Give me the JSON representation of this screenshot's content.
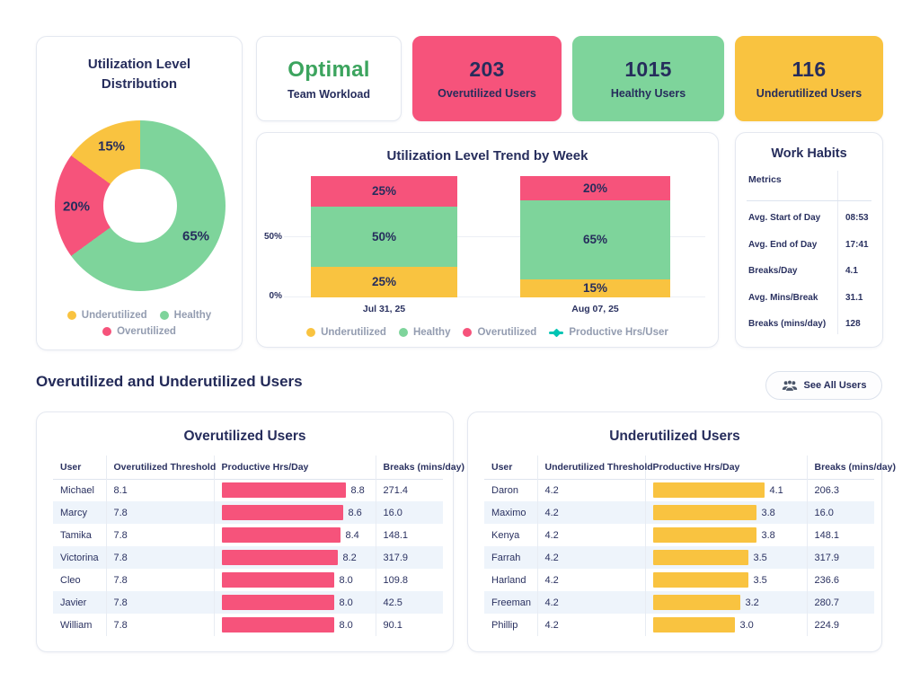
{
  "colors": {
    "pink": "#F6537B",
    "green": "#7ED49B",
    "yellow": "#F9C340",
    "teal": "#00C5B4",
    "navy": "#262D5C",
    "optimal_green": "#3CA45E"
  },
  "donut": {
    "title_line1": "Utilization Level",
    "title_line2": "Distribution",
    "chart_data": {
      "type": "pie",
      "slices": [
        {
          "label": "Healthy",
          "value": 65,
          "display": "65%",
          "color": "#7ED49B"
        },
        {
          "label": "Overutilized",
          "value": 20,
          "display": "20%",
          "color": "#F6537B"
        },
        {
          "label": "Underutilized",
          "value": 15,
          "display": "15%",
          "color": "#F9C340"
        }
      ]
    },
    "legend": [
      {
        "label": "Underutilized",
        "color": "#F9C340"
      },
      {
        "label": "Healthy",
        "color": "#7ED49B"
      },
      {
        "label": "Overutilized",
        "color": "#F6537B"
      }
    ]
  },
  "stat_cards": {
    "workload": {
      "value": "Optimal",
      "label": "Team Workload"
    },
    "overutilized": {
      "value": "203",
      "label": "Overutilized Users"
    },
    "healthy": {
      "value": "1015",
      "label": "Healthy Users"
    },
    "underutilized": {
      "value": "116",
      "label": "Underutilized Users"
    }
  },
  "trend": {
    "title": "Utilization Level Trend by Week",
    "y_ticks": [
      "50%",
      "0%"
    ],
    "chart_data": {
      "type": "bar",
      "stacked": true,
      "categories": [
        "Jul 31, 25",
        "Aug 07, 25"
      ],
      "series": [
        {
          "name": "Underutilized",
          "values": [
            25,
            15
          ]
        },
        {
          "name": "Healthy",
          "values": [
            50,
            65
          ]
        },
        {
          "name": "Overutilized",
          "values": [
            25,
            20
          ]
        }
      ],
      "ylim": [
        0,
        100
      ]
    },
    "weeks": [
      {
        "x_label": "Jul 31, 25",
        "values": {
          "overutilized": 25,
          "healthy": 50,
          "underutilized": 25
        },
        "display": {
          "overutilized": "25%",
          "healthy": "50%",
          "underutilized": "25%"
        }
      },
      {
        "x_label": "Aug 07, 25",
        "values": {
          "overutilized": 20,
          "healthy": 65,
          "underutilized": 15
        },
        "display": {
          "overutilized": "20%",
          "healthy": "65%",
          "underutilized": "15%"
        }
      }
    ],
    "legend": [
      {
        "label": "Underutilized",
        "color": "#F9C340",
        "marker": "dot"
      },
      {
        "label": "Healthy",
        "color": "#7ED49B",
        "marker": "dot"
      },
      {
        "label": "Overutilized",
        "color": "#F6537B",
        "marker": "dot"
      },
      {
        "label": "Productive Hrs/User",
        "color": "#00C5B4",
        "marker": "line-diamond"
      }
    ]
  },
  "work_habits": {
    "title": "Work Habits",
    "column_header": "Metrics",
    "rows": [
      {
        "label": "Avg. Start of Day",
        "value": "08:53"
      },
      {
        "label": "Avg. End of Day",
        "value": "17:41"
      },
      {
        "label": "Breaks/Day",
        "value": "4.1"
      },
      {
        "label": "Avg. Mins/Break",
        "value": "31.1"
      },
      {
        "label": "Breaks (mins/day)",
        "value": "128"
      }
    ]
  },
  "users_section": {
    "title": "Overutilized and Underutilized Users",
    "see_all_button": "See All Users"
  },
  "users_tables": {
    "overutilized": {
      "title": "Overutilized Users",
      "columns": [
        "User",
        "Overutilized Threshold",
        "Productive Hrs/Day",
        "Breaks (mins/day)"
      ],
      "bar_color": "#F6537B",
      "rows": [
        {
          "user": "Michael",
          "threshold": "8.1",
          "hours": 8.8,
          "hours_label": "8.8",
          "breaks": "271.4"
        },
        {
          "user": "Marcy",
          "threshold": "7.8",
          "hours": 8.6,
          "hours_label": "8.6",
          "breaks": "16.0"
        },
        {
          "user": "Tamika",
          "threshold": "7.8",
          "hours": 8.4,
          "hours_label": "8.4",
          "breaks": "148.1"
        },
        {
          "user": "Victorina",
          "threshold": "7.8",
          "hours": 8.2,
          "hours_label": "8.2",
          "breaks": "317.9"
        },
        {
          "user": "Cleo",
          "threshold": "7.8",
          "hours": 8.0,
          "hours_label": "8.0",
          "breaks": "109.8"
        },
        {
          "user": "Javier",
          "threshold": "7.8",
          "hours": 8.0,
          "hours_label": "8.0",
          "breaks": "42.5"
        },
        {
          "user": "William",
          "threshold": "7.8",
          "hours": 8.0,
          "hours_label": "8.0",
          "breaks": "90.1"
        }
      ]
    },
    "underutilized": {
      "title": "Underutilized Users",
      "columns": [
        "User",
        "Underutilized Threshold",
        "Productive Hrs/Day",
        "Breaks (mins/day)"
      ],
      "bar_color": "#F9C340",
      "rows": [
        {
          "user": "Daron",
          "threshold": "4.2",
          "hours": 4.1,
          "hours_label": "4.1",
          "breaks": "206.3"
        },
        {
          "user": "Maximo",
          "threshold": "4.2",
          "hours": 3.8,
          "hours_label": "3.8",
          "breaks": "16.0"
        },
        {
          "user": "Kenya",
          "threshold": "4.2",
          "hours": 3.8,
          "hours_label": "3.8",
          "breaks": "148.1"
        },
        {
          "user": "Farrah",
          "threshold": "4.2",
          "hours": 3.5,
          "hours_label": "3.5",
          "breaks": "317.9"
        },
        {
          "user": "Harland",
          "threshold": "4.2",
          "hours": 3.5,
          "hours_label": "3.5",
          "breaks": "236.6"
        },
        {
          "user": "Freeman",
          "threshold": "4.2",
          "hours": 3.2,
          "hours_label": "3.2",
          "breaks": "280.7"
        },
        {
          "user": "Phillip",
          "threshold": "4.2",
          "hours": 3.0,
          "hours_label": "3.0",
          "breaks": "224.9"
        }
      ]
    }
  }
}
